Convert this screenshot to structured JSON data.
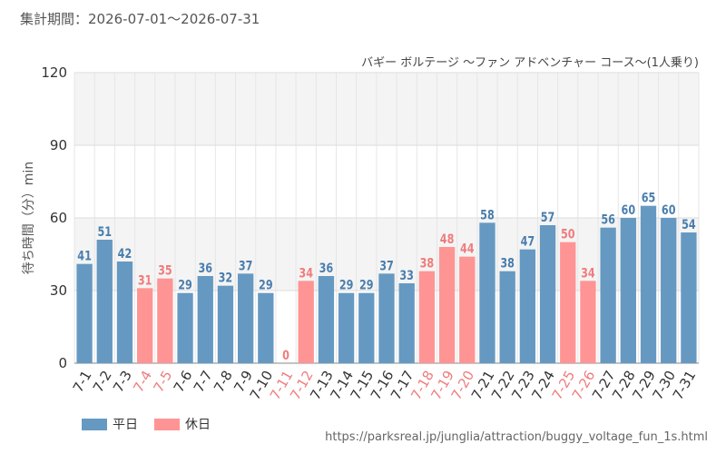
{
  "header": {
    "period": "集計期間：2026-07-01～2026-07-31",
    "subtitle": "バギー ボルテージ ～ファン アドベンチャー コース～(1人乗り)"
  },
  "legend": {
    "weekday": "平日",
    "holiday": "休日"
  },
  "source_url": "https://parksreal.jp/junglia/attraction/buggy_voltage_fun_1s.html",
  "colors": {
    "weekday": "#6699c2",
    "holiday": "#ff9494",
    "weekday_label": "#4a7ead",
    "holiday_label": "#f07c7c"
  },
  "chart_data": {
    "type": "bar",
    "ylabel": "待ち時間（分）min",
    "ylim": [
      0,
      120
    ],
    "yticks": [
      0,
      30,
      60,
      90,
      120
    ],
    "grid": true,
    "legend_position": "bottom-left",
    "categories": [
      "7-1",
      "7-2",
      "7-3",
      "7-4",
      "7-5",
      "7-6",
      "7-7",
      "7-8",
      "7-9",
      "7-10",
      "7-11",
      "7-12",
      "7-13",
      "7-14",
      "7-15",
      "7-16",
      "7-17",
      "7-18",
      "7-19",
      "7-20",
      "7-21",
      "7-22",
      "7-23",
      "7-24",
      "7-25",
      "7-26",
      "7-27",
      "7-28",
      "7-29",
      "7-30",
      "7-31"
    ],
    "values": [
      41,
      51,
      42,
      31,
      35,
      29,
      36,
      32,
      37,
      29,
      0,
      34,
      36,
      29,
      29,
      37,
      33,
      38,
      48,
      44,
      58,
      38,
      47,
      57,
      50,
      34,
      56,
      60,
      65,
      60,
      54
    ],
    "day_type": [
      "weekday",
      "weekday",
      "weekday",
      "holiday",
      "holiday",
      "weekday",
      "weekday",
      "weekday",
      "weekday",
      "weekday",
      "holiday",
      "holiday",
      "weekday",
      "weekday",
      "weekday",
      "weekday",
      "weekday",
      "holiday",
      "holiday",
      "holiday",
      "weekday",
      "weekday",
      "weekday",
      "weekday",
      "holiday",
      "holiday",
      "weekday",
      "weekday",
      "weekday",
      "weekday",
      "weekday"
    ]
  }
}
